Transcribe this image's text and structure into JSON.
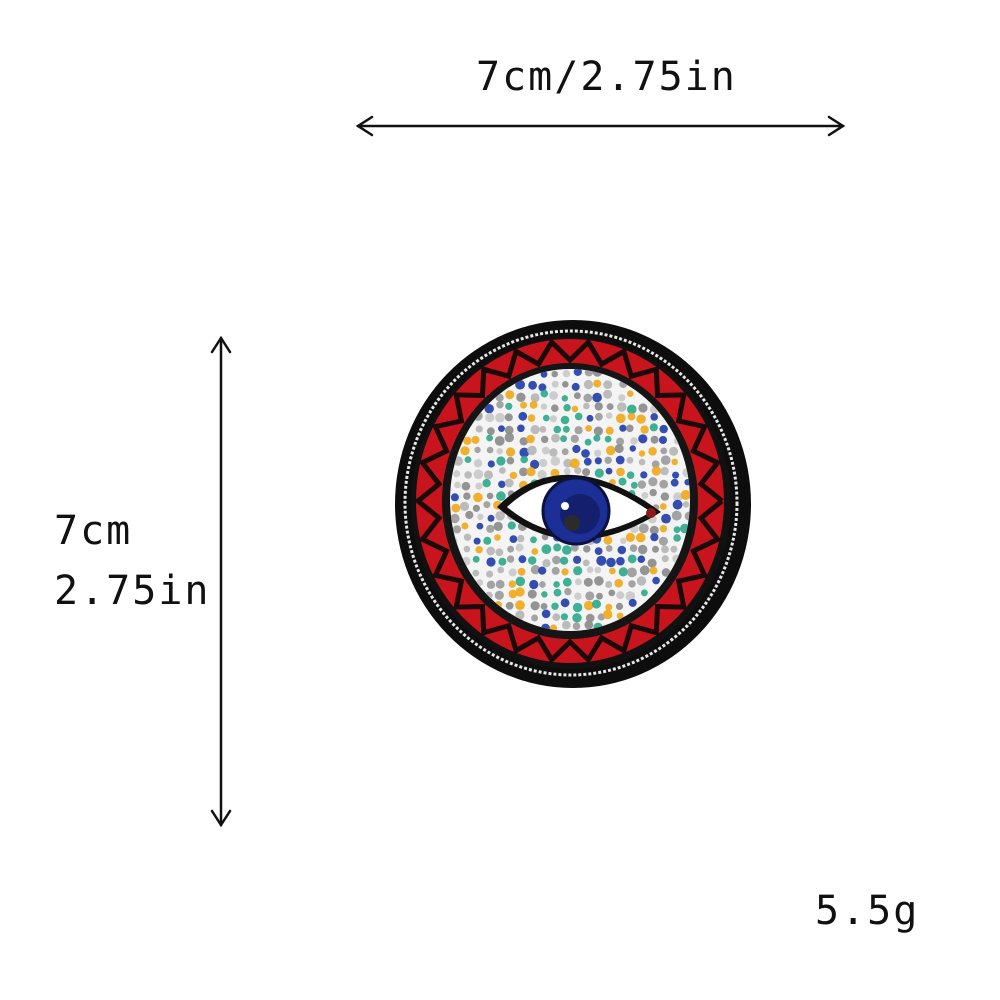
{
  "dimensions": {
    "width_label": "7cm/2.75in",
    "height_label_cm": "7cm",
    "height_label_in": "2.75in",
    "weight_label": "5.5g"
  },
  "product": {
    "type": "iron-on patch",
    "motif": "evil eye",
    "colors": {
      "border": "#111111",
      "stitch_ring": "#e8e8e8",
      "zigzag": "#d8222a",
      "eye_blue": "#1b2f96",
      "rhinestone_accents": [
        "#f0a818",
        "#1e3ca8",
        "#2aa88a",
        "#9a9a9a"
      ]
    }
  }
}
